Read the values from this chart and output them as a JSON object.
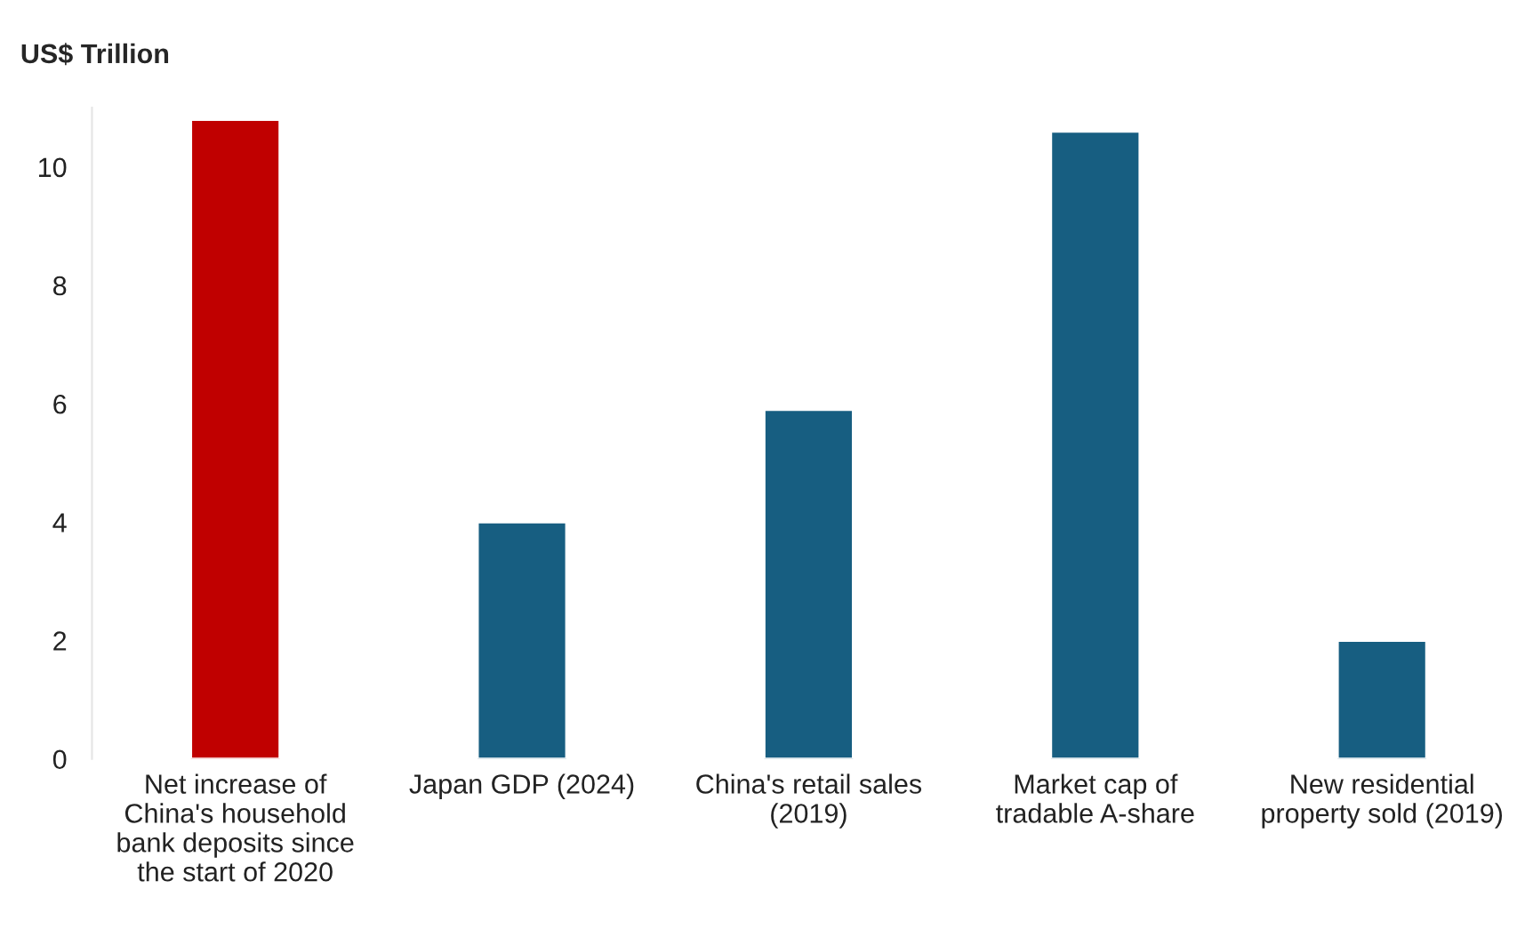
{
  "chart_data": {
    "type": "bar",
    "ylabel": "US$ Trillion",
    "categories": [
      "Net increase of\nChina's household\nbank deposits since\nthe start of 2020",
      "Japan GDP (2024)",
      "China's retail sales\n(2019)",
      "Market cap of\ntradable A-share",
      "New residential\nproperty sold (2019)"
    ],
    "values": [
      10.8,
      4.0,
      5.9,
      10.6,
      2.0
    ],
    "colors": [
      "#c00000",
      "#175e81",
      "#175e81",
      "#175e81",
      "#175e81"
    ],
    "ylim": [
      0,
      11
    ],
    "yticks": [
      0,
      2,
      4,
      6,
      8,
      10
    ],
    "grid": false,
    "legend": false
  }
}
